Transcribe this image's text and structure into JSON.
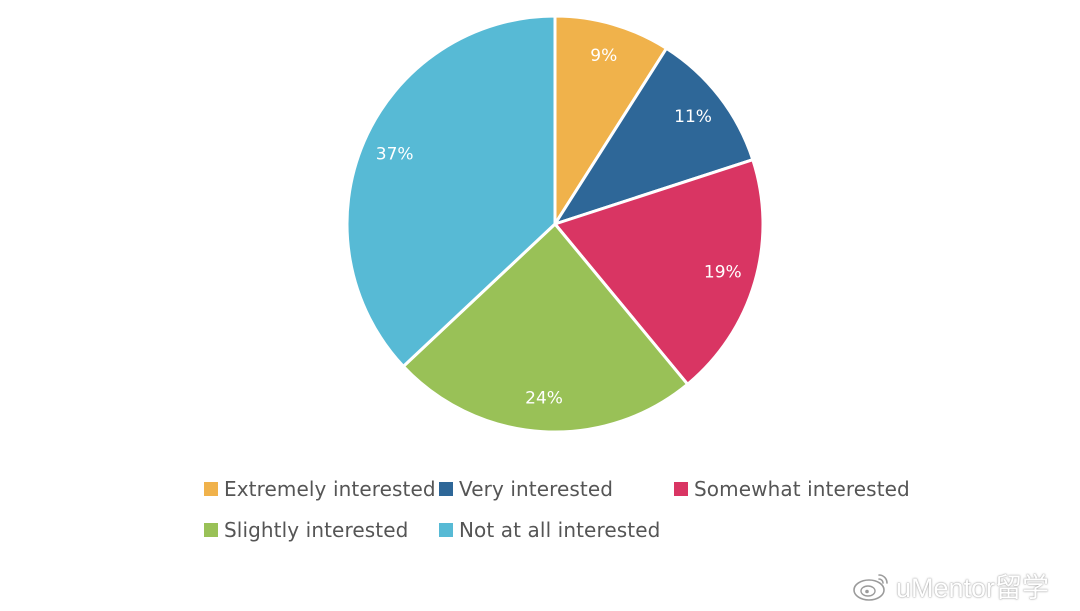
{
  "chart_data": {
    "type": "pie",
    "title": "",
    "start_angle_deg": 0,
    "direction": "clockwise",
    "slices": [
      {
        "name": "Extremely interested",
        "value": 9,
        "label": "9%",
        "color": "#F0B24B"
      },
      {
        "name": "Very interested",
        "value": 11,
        "label": "11%",
        "color": "#2E6798"
      },
      {
        "name": "Somewhat interested",
        "value": 19,
        "label": "19%",
        "color": "#D93563"
      },
      {
        "name": "Slightly interested",
        "value": 24,
        "label": "24%",
        "color": "#99C157"
      },
      {
        "name": "Not at all interested",
        "value": 37,
        "label": "37%",
        "color": "#57BAD5"
      }
    ],
    "legend": {
      "placement": "bottom",
      "items": [
        {
          "name": "Extremely interested",
          "color": "#F0B24B"
        },
        {
          "name": "Very interested",
          "color": "#2E6798"
        },
        {
          "name": "Somewhat interested",
          "color": "#D93563"
        },
        {
          "name": "Slightly interested",
          "color": "#99C157"
        },
        {
          "name": "Not at all interested",
          "color": "#57BAD5"
        }
      ]
    }
  },
  "watermark": {
    "text": "uMentor留学",
    "icon": "weibo-icon"
  }
}
